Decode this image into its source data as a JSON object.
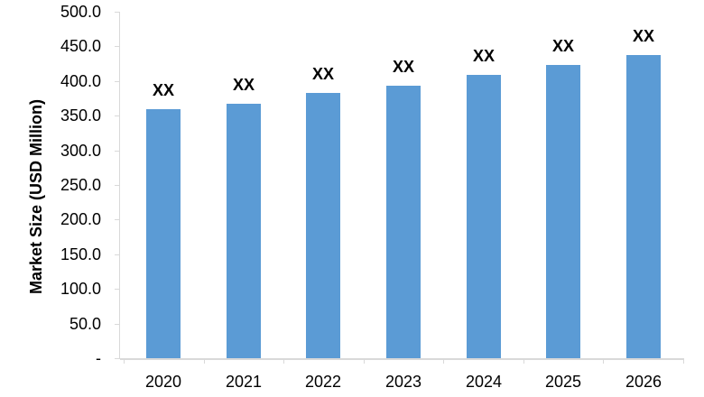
{
  "chart_data": {
    "type": "bar",
    "title": "",
    "ylabel": "Market Size (USD Million)",
    "xlabel": "",
    "categories": [
      "2020",
      "2021",
      "2022",
      "2023",
      "2024",
      "2025",
      "2026"
    ],
    "values": [
      359,
      367,
      383,
      393,
      409,
      423,
      437
    ],
    "bar_labels": [
      "XX",
      "XX",
      "XX",
      "XX",
      "XX",
      "XX",
      "XX"
    ],
    "ylim": [
      0,
      500
    ],
    "ytick_step": 50,
    "ytick_labels": [
      "500.0",
      "450.0",
      "400.0",
      "350.0",
      "300.0",
      "250.0",
      "200.0",
      "150.0",
      "100.0",
      "50.0",
      "-"
    ],
    "grid": false,
    "legend": "none",
    "bar_color": "#5B9BD5",
    "axis_line_color": "#D9D9D9",
    "text_color": "#000000"
  }
}
